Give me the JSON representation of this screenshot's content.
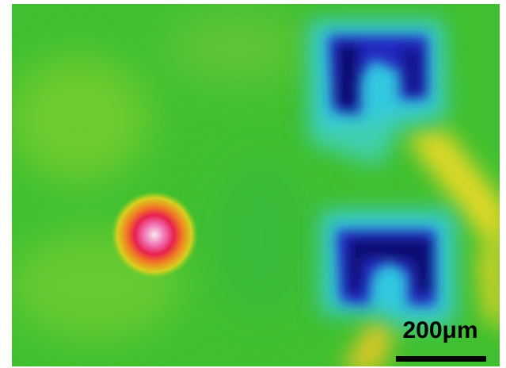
{
  "scale_bar": {
    "label": "200μm"
  }
}
